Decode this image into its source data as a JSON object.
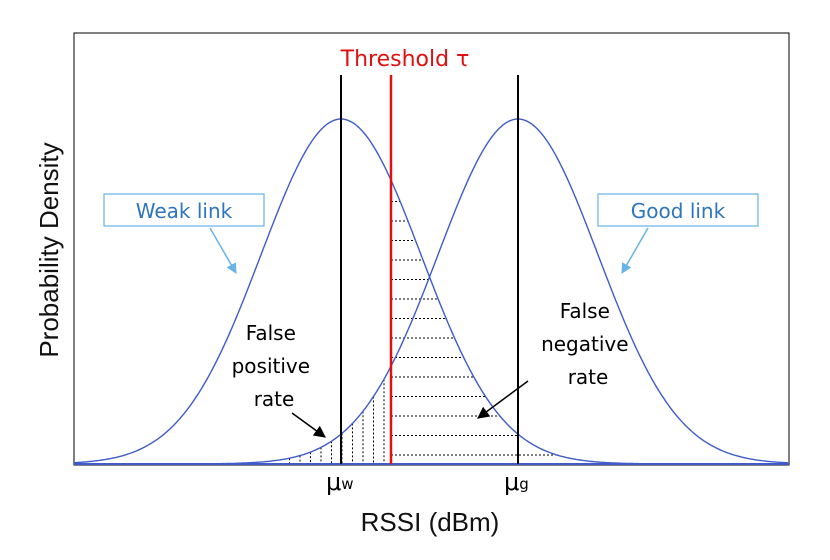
{
  "diagram": {
    "threshold_label": "Threshold τ",
    "weak_link_label": "Weak link",
    "good_link_label": "Good link",
    "false_positive_lines": [
      "False",
      "positive",
      "rate"
    ],
    "false_negative_lines": [
      "False",
      "negative",
      "rate"
    ],
    "mu_w_symbol": "μ",
    "mu_w_sub": "w",
    "mu_g_symbol": "μ",
    "mu_g_sub": "g",
    "x_axis_label": "RSSI (dBm)",
    "y_axis_label": "Probability Density",
    "colors": {
      "curve": "#3f5bc9",
      "threshold": "#e01010",
      "label_box": "#66b3e6",
      "label_text": "#2e75c0",
      "axis": "#000000"
    }
  }
}
